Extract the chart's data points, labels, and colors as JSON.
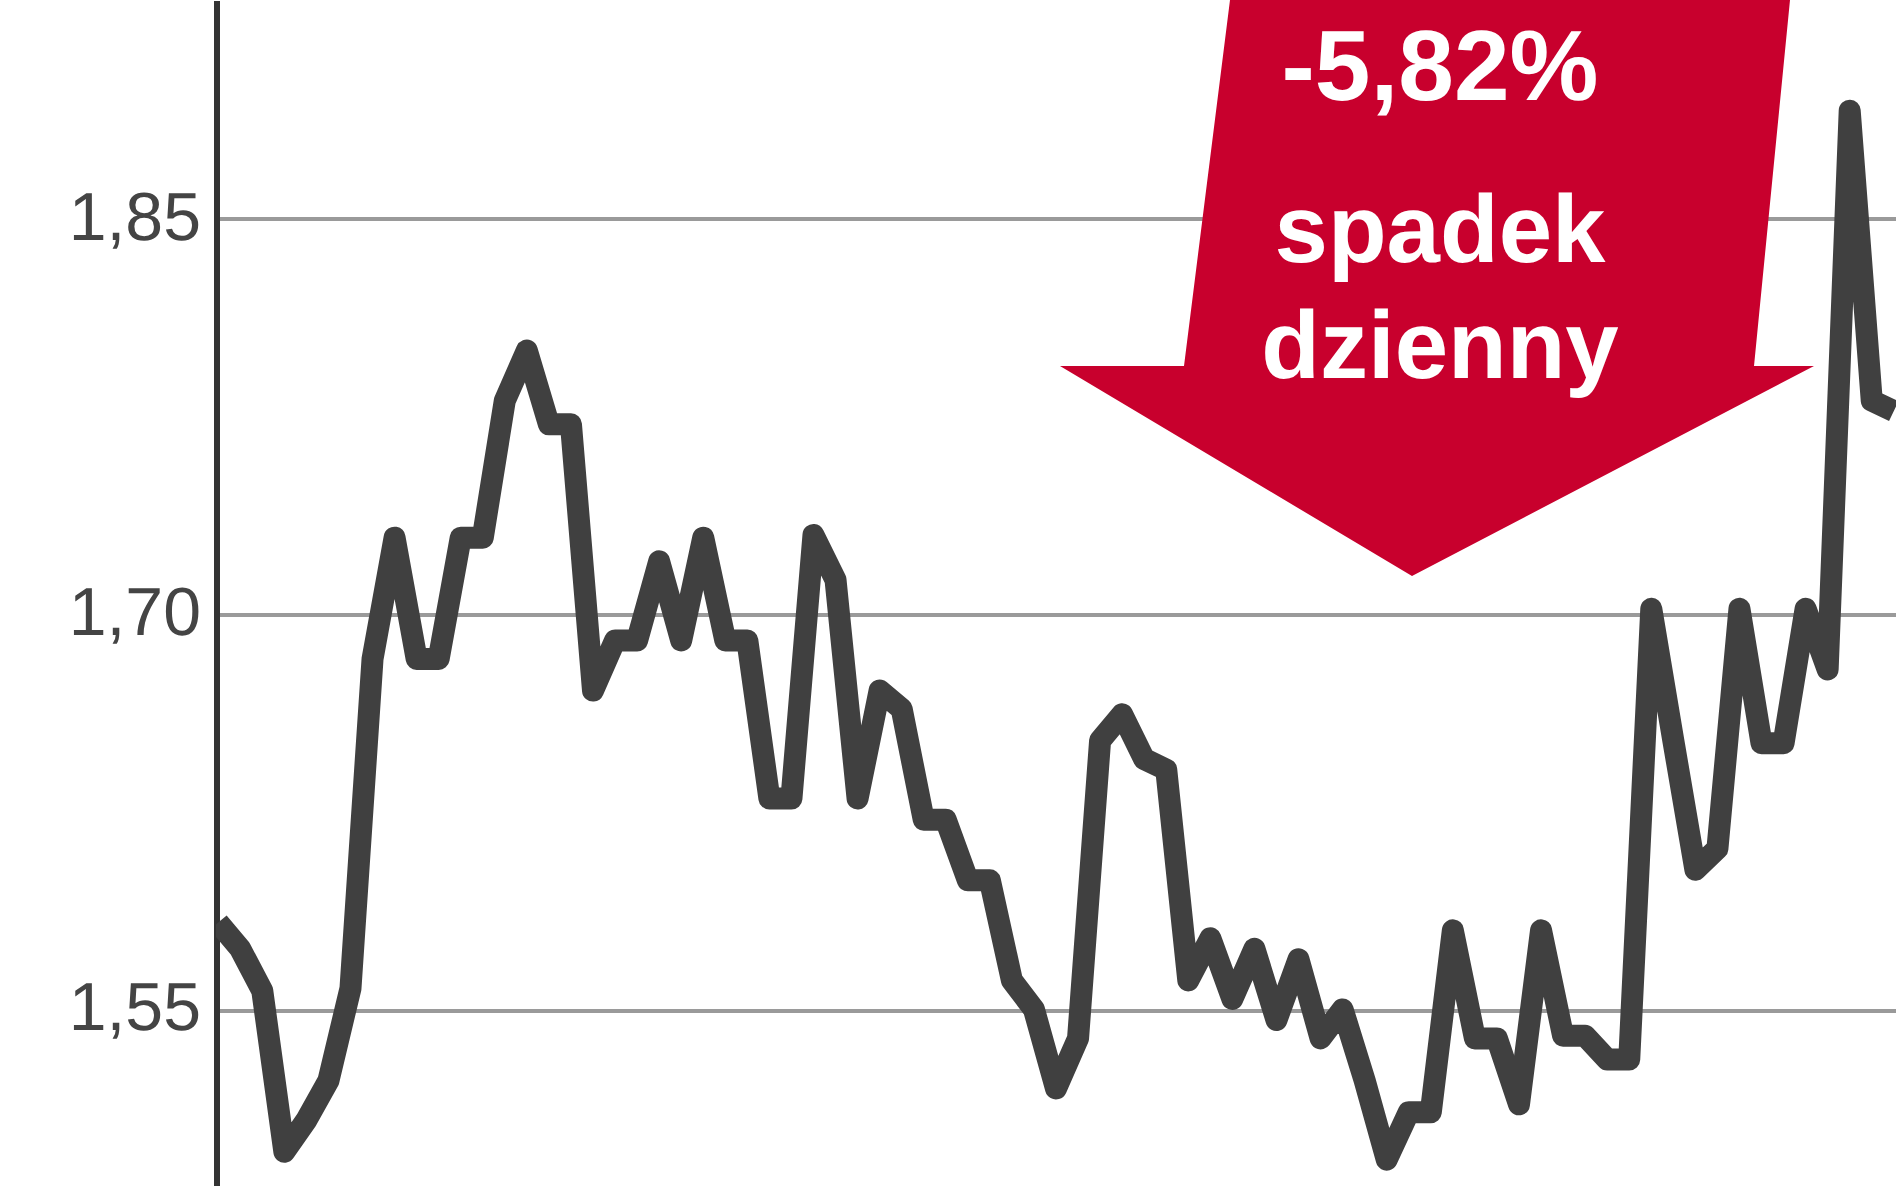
{
  "chart_data": {
    "type": "line",
    "categories": [
      null,
      null,
      null,
      null,
      null,
      null,
      null,
      null,
      null,
      null,
      null,
      null,
      null,
      null,
      null,
      null,
      null,
      null,
      null,
      null,
      null,
      null,
      null,
      null,
      null,
      null,
      null,
      null,
      null,
      null,
      null,
      null,
      null,
      null,
      null,
      null,
      null,
      null,
      null,
      null,
      null,
      null,
      null,
      null,
      null,
      null,
      null,
      null,
      null,
      null,
      null,
      null,
      null,
      null,
      null,
      null,
      null,
      null,
      null,
      null,
      null,
      null,
      null,
      null,
      null,
      null,
      null,
      null,
      null,
      null,
      null,
      null,
      null,
      null,
      null,
      null,
      null
    ],
    "series": [
      {
        "color": "#404040",
        "values": [
          1.583,
          1.573,
          1.557,
          1.496,
          1.508,
          1.523,
          1.558,
          1.683,
          1.729,
          1.683,
          1.683,
          1.729,
          1.729,
          1.781,
          1.8,
          1.772,
          1.772,
          1.671,
          1.69,
          1.69,
          1.72,
          1.69,
          1.729,
          1.69,
          1.69,
          1.63,
          1.63,
          1.73,
          1.713,
          1.63,
          1.671,
          1.664,
          1.622,
          1.622,
          1.599,
          1.599,
          1.561,
          1.55,
          1.52,
          1.539,
          1.652,
          1.662,
          1.645,
          1.641,
          1.561,
          1.577,
          1.554,
          1.573,
          1.546,
          1.569,
          1.539,
          1.55,
          1.523,
          1.493,
          1.511,
          1.511,
          1.58,
          1.539,
          1.539,
          1.514,
          1.58,
          1.54,
          1.54,
          1.531,
          1.531,
          1.702,
          1.652,
          1.603,
          1.611,
          1.702,
          1.651,
          1.651,
          1.702,
          1.679,
          1.891,
          1.781,
          1.777
        ]
      }
    ],
    "ylim": [
      1.483,
      1.933
    ],
    "yticks": [
      {
        "value": 1.55,
        "label": "1,55"
      },
      {
        "value": 1.7,
        "label": "1,70"
      },
      {
        "value": 1.85,
        "label": "1,85"
      }
    ],
    "grid": "y",
    "line_style": "solid",
    "tick_labels": "y",
    "annotations": [
      "-5,82%",
      "spadek",
      "dzienny"
    ]
  }
}
